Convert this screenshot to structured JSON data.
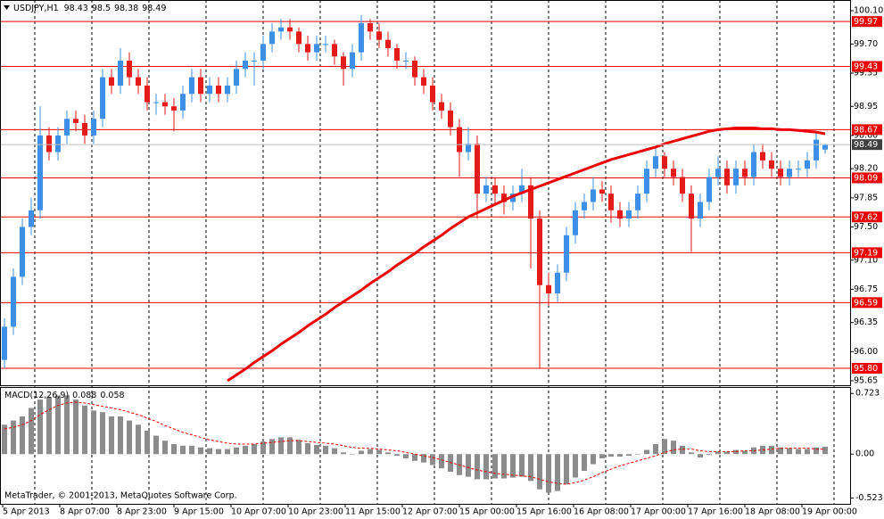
{
  "chart_data": {
    "type": "candlestick",
    "symbol": "USDJPY,H1",
    "up_color": "#3d8fe6",
    "down_color": "#e41b1b",
    "candles": [
      [
        95.9,
        96.4,
        95.8,
        96.3
      ],
      [
        96.3,
        97.0,
        96.2,
        96.9
      ],
      [
        96.9,
        97.6,
        96.8,
        97.5
      ],
      [
        97.5,
        97.85,
        97.4,
        97.7
      ],
      [
        97.7,
        98.95,
        97.6,
        98.6
      ],
      [
        98.6,
        98.7,
        98.3,
        98.4
      ],
      [
        98.4,
        98.7,
        98.3,
        98.6
      ],
      [
        98.6,
        98.9,
        98.5,
        98.8
      ],
      [
        98.8,
        98.9,
        98.65,
        98.75
      ],
      [
        98.75,
        98.85,
        98.5,
        98.6
      ],
      [
        98.6,
        98.9,
        98.5,
        98.8
      ],
      [
        98.8,
        99.4,
        98.7,
        99.3
      ],
      [
        99.3,
        99.4,
        99.1,
        99.2
      ],
      [
        99.2,
        99.65,
        99.1,
        99.5
      ],
      [
        99.5,
        99.6,
        99.2,
        99.3
      ],
      [
        99.3,
        99.4,
        99.1,
        99.2
      ],
      [
        99.2,
        99.3,
        98.9,
        99.0
      ],
      [
        99.0,
        99.1,
        98.85,
        99.0
      ],
      [
        99.0,
        99.1,
        98.85,
        98.95
      ],
      [
        98.95,
        99.05,
        98.65,
        98.9
      ],
      [
        98.9,
        99.2,
        98.8,
        99.1
      ],
      [
        99.1,
        99.4,
        99.0,
        99.3
      ],
      [
        99.3,
        99.4,
        99.0,
        99.1
      ],
      [
        99.1,
        99.3,
        99.0,
        99.2
      ],
      [
        99.2,
        99.3,
        99.0,
        99.1
      ],
      [
        99.1,
        99.3,
        99.0,
        99.2
      ],
      [
        99.2,
        99.5,
        99.1,
        99.4
      ],
      [
        99.4,
        99.6,
        99.3,
        99.5
      ],
      [
        99.5,
        99.6,
        99.2,
        99.5
      ],
      [
        99.5,
        99.8,
        99.4,
        99.7
      ],
      [
        99.7,
        99.95,
        99.6,
        99.85
      ],
      [
        99.85,
        100.0,
        99.75,
        99.9
      ],
      [
        99.9,
        100.0,
        99.75,
        99.85
      ],
      [
        99.85,
        99.9,
        99.6,
        99.7
      ],
      [
        99.7,
        99.8,
        99.5,
        99.6
      ],
      [
        99.6,
        99.8,
        99.5,
        99.7
      ],
      [
        99.7,
        99.8,
        99.6,
        99.7
      ],
      [
        99.7,
        99.75,
        99.45,
        99.55
      ],
      [
        99.55,
        99.6,
        99.2,
        99.4
      ],
      [
        99.4,
        99.7,
        99.3,
        99.6
      ],
      [
        99.6,
        100.05,
        99.5,
        99.95
      ],
      [
        99.95,
        100.0,
        99.75,
        99.85
      ],
      [
        99.85,
        99.95,
        99.65,
        99.75
      ],
      [
        99.75,
        99.85,
        99.55,
        99.65
      ],
      [
        99.65,
        99.7,
        99.4,
        99.5
      ],
      [
        99.5,
        99.6,
        99.4,
        99.5
      ],
      [
        99.5,
        99.55,
        99.2,
        99.3
      ],
      [
        99.3,
        99.4,
        99.1,
        99.2
      ],
      [
        99.2,
        99.3,
        98.9,
        99.0
      ],
      [
        99.0,
        99.1,
        98.8,
        98.9
      ],
      [
        98.9,
        99.0,
        98.6,
        98.7
      ],
      [
        98.7,
        98.8,
        98.1,
        98.4
      ],
      [
        98.4,
        98.7,
        98.3,
        98.5
      ],
      [
        98.5,
        98.6,
        97.6,
        97.9
      ],
      [
        97.9,
        98.1,
        97.8,
        98.0
      ],
      [
        98.0,
        98.1,
        97.75,
        97.9
      ],
      [
        97.9,
        98.0,
        97.65,
        97.8
      ],
      [
        97.8,
        98.0,
        97.7,
        97.9
      ],
      [
        97.9,
        98.2,
        97.8,
        98.0
      ],
      [
        98.0,
        98.1,
        97.0,
        97.6
      ],
      [
        97.6,
        97.7,
        95.8,
        96.8
      ],
      [
        96.8,
        96.95,
        96.55,
        96.7
      ],
      [
        96.7,
        97.05,
        96.6,
        96.95
      ],
      [
        96.95,
        97.5,
        96.85,
        97.4
      ],
      [
        97.4,
        97.8,
        97.3,
        97.7
      ],
      [
        97.7,
        97.9,
        97.6,
        97.8
      ],
      [
        97.8,
        98.1,
        97.7,
        97.95
      ],
      [
        97.95,
        98.05,
        97.8,
        97.9
      ],
      [
        97.9,
        98.0,
        97.55,
        97.7
      ],
      [
        97.7,
        97.8,
        97.5,
        97.6
      ],
      [
        97.6,
        97.8,
        97.5,
        97.7
      ],
      [
        97.7,
        98.0,
        97.6,
        97.9
      ],
      [
        97.9,
        98.3,
        97.8,
        98.2
      ],
      [
        98.2,
        98.45,
        98.1,
        98.35
      ],
      [
        98.35,
        98.4,
        98.1,
        98.2
      ],
      [
        98.2,
        98.3,
        98.0,
        98.1
      ],
      [
        98.1,
        98.2,
        97.8,
        97.9
      ],
      [
        97.9,
        98.0,
        97.2,
        97.6
      ],
      [
        97.6,
        97.9,
        97.5,
        97.8
      ],
      [
        97.8,
        98.2,
        97.7,
        98.1
      ],
      [
        98.1,
        98.35,
        98.0,
        98.2
      ],
      [
        98.2,
        98.3,
        97.9,
        98.0
      ],
      [
        98.0,
        98.3,
        97.9,
        98.2
      ],
      [
        98.2,
        98.3,
        98.0,
        98.1
      ],
      [
        98.1,
        98.5,
        98.0,
        98.4
      ],
      [
        98.4,
        98.5,
        98.2,
        98.3
      ],
      [
        98.3,
        98.4,
        98.1,
        98.2
      ],
      [
        98.2,
        98.3,
        98.0,
        98.1
      ],
      [
        98.1,
        98.3,
        98.0,
        98.2
      ],
      [
        98.2,
        98.3,
        98.1,
        98.2
      ],
      [
        98.2,
        98.4,
        98.1,
        98.3
      ],
      [
        98.3,
        98.65,
        98.2,
        98.55
      ],
      [
        98.43,
        98.5,
        98.38,
        98.49
      ]
    ],
    "ma": {
      "color": "#ee0000",
      "values": [
        null,
        null,
        null,
        null,
        null,
        null,
        null,
        null,
        null,
        null,
        null,
        null,
        null,
        null,
        null,
        null,
        null,
        null,
        null,
        null,
        null,
        null,
        null,
        null,
        null,
        95.65,
        95.72,
        95.79,
        95.87,
        95.94,
        96.01,
        96.09,
        96.16,
        96.23,
        96.31,
        96.38,
        96.45,
        96.53,
        96.6,
        96.67,
        96.74,
        96.82,
        96.89,
        96.96,
        97.04,
        97.11,
        97.18,
        97.26,
        97.33,
        97.4,
        97.48,
        97.55,
        97.62,
        97.67,
        97.72,
        97.77,
        97.82,
        97.87,
        97.91,
        97.95,
        97.99,
        98.03,
        98.07,
        98.11,
        98.15,
        98.19,
        98.23,
        98.27,
        98.31,
        98.34,
        98.37,
        98.4,
        98.43,
        98.46,
        98.5,
        98.53,
        98.56,
        98.59,
        98.62,
        98.65,
        98.67,
        98.68,
        98.69,
        98.69,
        98.69,
        98.68,
        98.68,
        98.67,
        98.67,
        98.66,
        98.65,
        98.64,
        98.62
      ]
    },
    "ylim": [
      95.596,
      100.229
    ],
    "yticks": [
      {
        "value": 100.1,
        "label": "100.10"
      },
      {
        "value": 99.7,
        "label": "99.70"
      },
      99.35,
      98.95,
      {
        "value": 98.6,
        "label": "98.60"
      },
      {
        "value": 98.2,
        "label": "98.20"
      },
      97.85,
      {
        "value": 97.5,
        "label": "97.50"
      },
      {
        "value": 97.1,
        "label": "97.10"
      },
      96.75,
      96.35,
      {
        "value": 96.0,
        "label": "96.00"
      },
      95.65
    ],
    "levels": {
      "color": "#ee0000",
      "values": [
        99.97,
        99.43,
        98.67,
        98.09,
        97.62,
        97.19,
        96.59,
        {
          "value": 95.8,
          "label": "95.80"
        }
      ]
    },
    "xlabels": [
      "5 Apr 2013",
      "8 Apr 07:00",
      "8 Apr 23:00",
      "9 Apr 15:00",
      "10 Apr 07:00",
      "10 Apr 23:00",
      "11 Apr 15:00",
      "12 Apr 07:00",
      "15 Apr 00:00",
      "15 Apr 16:00",
      "16 Apr 08:00",
      "17 Apr 00:00",
      "17 Apr 16:00",
      "18 Apr 08:00",
      "19 Apr 00:00"
    ],
    "macd": {
      "name": "MACD(12,26,9)",
      "bar_color": "#8c8c8c",
      "signal_color": "#ee0000",
      "ylim": [
        -0.593,
        0.8
      ],
      "yticks": [
        0.723,
        {
          "value": 0,
          "label": "0.00"
        },
        -0.523
      ],
      "values": [
        0.35,
        0.4,
        0.45,
        0.55,
        0.65,
        0.68,
        0.7,
        0.7,
        0.65,
        0.58,
        0.52,
        0.5,
        0.45,
        0.45,
        0.4,
        0.35,
        0.28,
        0.22,
        0.16,
        0.12,
        0.1,
        0.1,
        0.08,
        0.07,
        0.06,
        0.06,
        0.08,
        0.1,
        0.12,
        0.15,
        0.18,
        0.2,
        0.2,
        0.17,
        0.13,
        0.11,
        0.1,
        0.07,
        0.02,
        0.0,
        0.04,
        0.06,
        0.05,
        0.02,
        -0.02,
        -0.05,
        -0.08,
        -0.1,
        -0.13,
        -0.17,
        -0.21,
        -0.25,
        -0.27,
        -0.3,
        -0.3,
        -0.29,
        -0.29,
        -0.28,
        -0.27,
        -0.32,
        -0.42,
        -0.46,
        -0.44,
        -0.36,
        -0.28,
        -0.2,
        -0.12,
        -0.05,
        -0.03,
        -0.03,
        -0.02,
        0.0,
        0.05,
        0.12,
        0.18,
        0.16,
        0.1,
        0.02,
        -0.04,
        -0.01,
        0.03,
        0.03,
        0.05,
        0.04,
        0.08,
        0.1,
        0.1,
        0.08,
        0.07,
        0.06,
        0.06,
        0.08,
        0.088
      ],
      "signal": [
        0.3,
        0.32,
        0.35,
        0.4,
        0.47,
        0.53,
        0.58,
        0.61,
        0.62,
        0.61,
        0.59,
        0.57,
        0.55,
        0.53,
        0.5,
        0.47,
        0.43,
        0.39,
        0.34,
        0.3,
        0.26,
        0.23,
        0.2,
        0.17,
        0.15,
        0.13,
        0.12,
        0.12,
        0.12,
        0.13,
        0.14,
        0.15,
        0.16,
        0.16,
        0.15,
        0.14,
        0.13,
        0.12,
        0.1,
        0.08,
        0.07,
        0.07,
        0.06,
        0.05,
        0.04,
        0.02,
        0.0,
        -0.02,
        -0.04,
        -0.07,
        -0.1,
        -0.13,
        -0.16,
        -0.19,
        -0.21,
        -0.23,
        -0.24,
        -0.25,
        -0.26,
        -0.27,
        -0.3,
        -0.33,
        -0.35,
        -0.36,
        -0.34,
        -0.31,
        -0.27,
        -0.22,
        -0.18,
        -0.14,
        -0.11,
        -0.08,
        -0.05,
        -0.02,
        0.02,
        0.05,
        0.06,
        0.06,
        0.04,
        0.03,
        0.03,
        0.03,
        0.03,
        0.04,
        0.04,
        0.05,
        0.06,
        0.07,
        0.07,
        0.07,
        0.07,
        0.06,
        0.058
      ]
    },
    "footer": "MetaTrader, © 2001-2013, MetaQuotes Software Corp."
  }
}
